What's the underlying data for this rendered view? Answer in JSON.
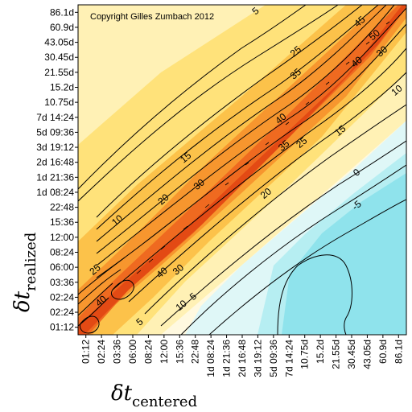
{
  "chart_data": {
    "type": "heatmap",
    "title": "",
    "annotation": "Copyright Gilles Zumbach 2012",
    "xlabel": {
      "symbol": "δt",
      "subscript": "centered"
    },
    "ylabel": {
      "symbol": "δt",
      "subscript": "realized"
    },
    "x_ticks": [
      "01:12",
      "02:24",
      "03:36",
      "06:00",
      "08:24",
      "12:00",
      "15:36",
      "22:48",
      "1d 08:24",
      "1d 21:36",
      "2d 16:48",
      "3d 19:12",
      "5d 09:36",
      "7d 14:24",
      "10.75d",
      "15.2d",
      "21.55d",
      "30.45d",
      "43.05d",
      "60.9d",
      "86.1d"
    ],
    "y_ticks": [
      "01:12",
      "02:24",
      "02:24",
      "03:36",
      "06:00",
      "08:24",
      "12:00",
      "15:36",
      "22:48",
      "1d 08:24",
      "1d 21:36",
      "2d 16:48",
      "3d 19:12",
      "5d 09:36",
      "7d 14:24",
      "10.75d",
      "15.2d",
      "21.55d",
      "30.45d",
      "43.05d",
      "60.9d",
      "86.1d"
    ],
    "contour_labels": [
      {
        "text": "5",
        "x": 11.5,
        "y": 21.0
      },
      {
        "text": "45",
        "x": 18.5,
        "y": 20.3
      },
      {
        "text": "50",
        "x": 19.5,
        "y": 19.4
      },
      {
        "text": "30",
        "x": 20.0,
        "y": 18.3
      },
      {
        "text": "25",
        "x": 14.2,
        "y": 18.3
      },
      {
        "text": "40",
        "x": 18.3,
        "y": 17.6
      },
      {
        "text": "35",
        "x": 14.2,
        "y": 16.8
      },
      {
        "text": "10",
        "x": 21.0,
        "y": 15.7
      },
      {
        "text": "40",
        "x": 13.2,
        "y": 13.8
      },
      {
        "text": "15",
        "x": 17.2,
        "y": 13.0
      },
      {
        "text": "35",
        "x": 13.4,
        "y": 12.0
      },
      {
        "text": "25",
        "x": 14.6,
        "y": 12.2
      },
      {
        "text": "15",
        "x": 6.8,
        "y": 11.2
      },
      {
        "text": "0",
        "x": 18.3,
        "y": 10.2
      },
      {
        "text": "30",
        "x": 7.7,
        "y": 9.4
      },
      {
        "text": "20",
        "x": 5.3,
        "y": 8.4
      },
      {
        "text": "20",
        "x": 12.2,
        "y": 8.8
      },
      {
        "text": "-5",
        "x": 18.3,
        "y": 8.0
      },
      {
        "text": "10",
        "x": 2.2,
        "y": 7.0
      },
      {
        "text": "40",
        "x": 5.2,
        "y": 3.5
      },
      {
        "text": "30",
        "x": 6.3,
        "y": 3.7
      },
      {
        "text": "25",
        "x": 0.7,
        "y": 3.7
      },
      {
        "text": "40",
        "x": 1.1,
        "y": 1.6
      },
      {
        "text": "10",
        "x": 6.5,
        "y": 1.3
      },
      {
        "text": "5",
        "x": 7.3,
        "y": 1.9
      },
      {
        "text": "5",
        "x": 3.7,
        "y": 0.2
      }
    ],
    "legend": "none"
  }
}
